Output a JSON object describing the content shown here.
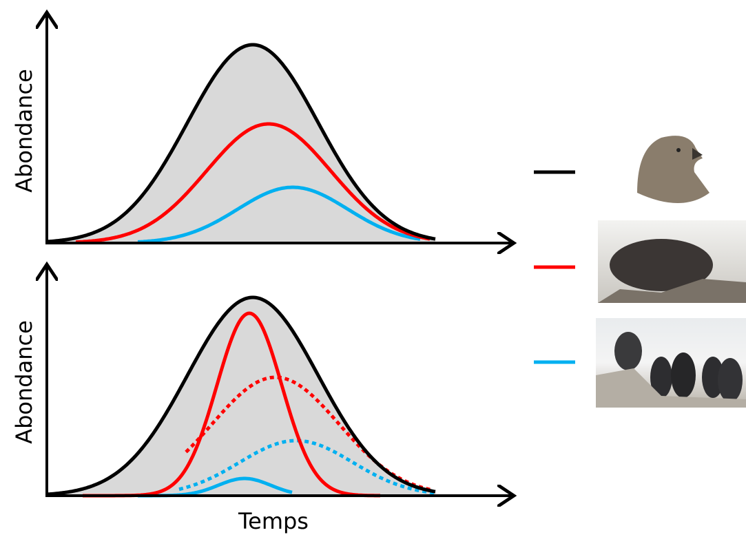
{
  "top_panel": {
    "y_axis_label": "Abondance"
  },
  "bottom_panel": {
    "y_axis_label": "Abondance",
    "x_axis_label": "Temps"
  }
}
